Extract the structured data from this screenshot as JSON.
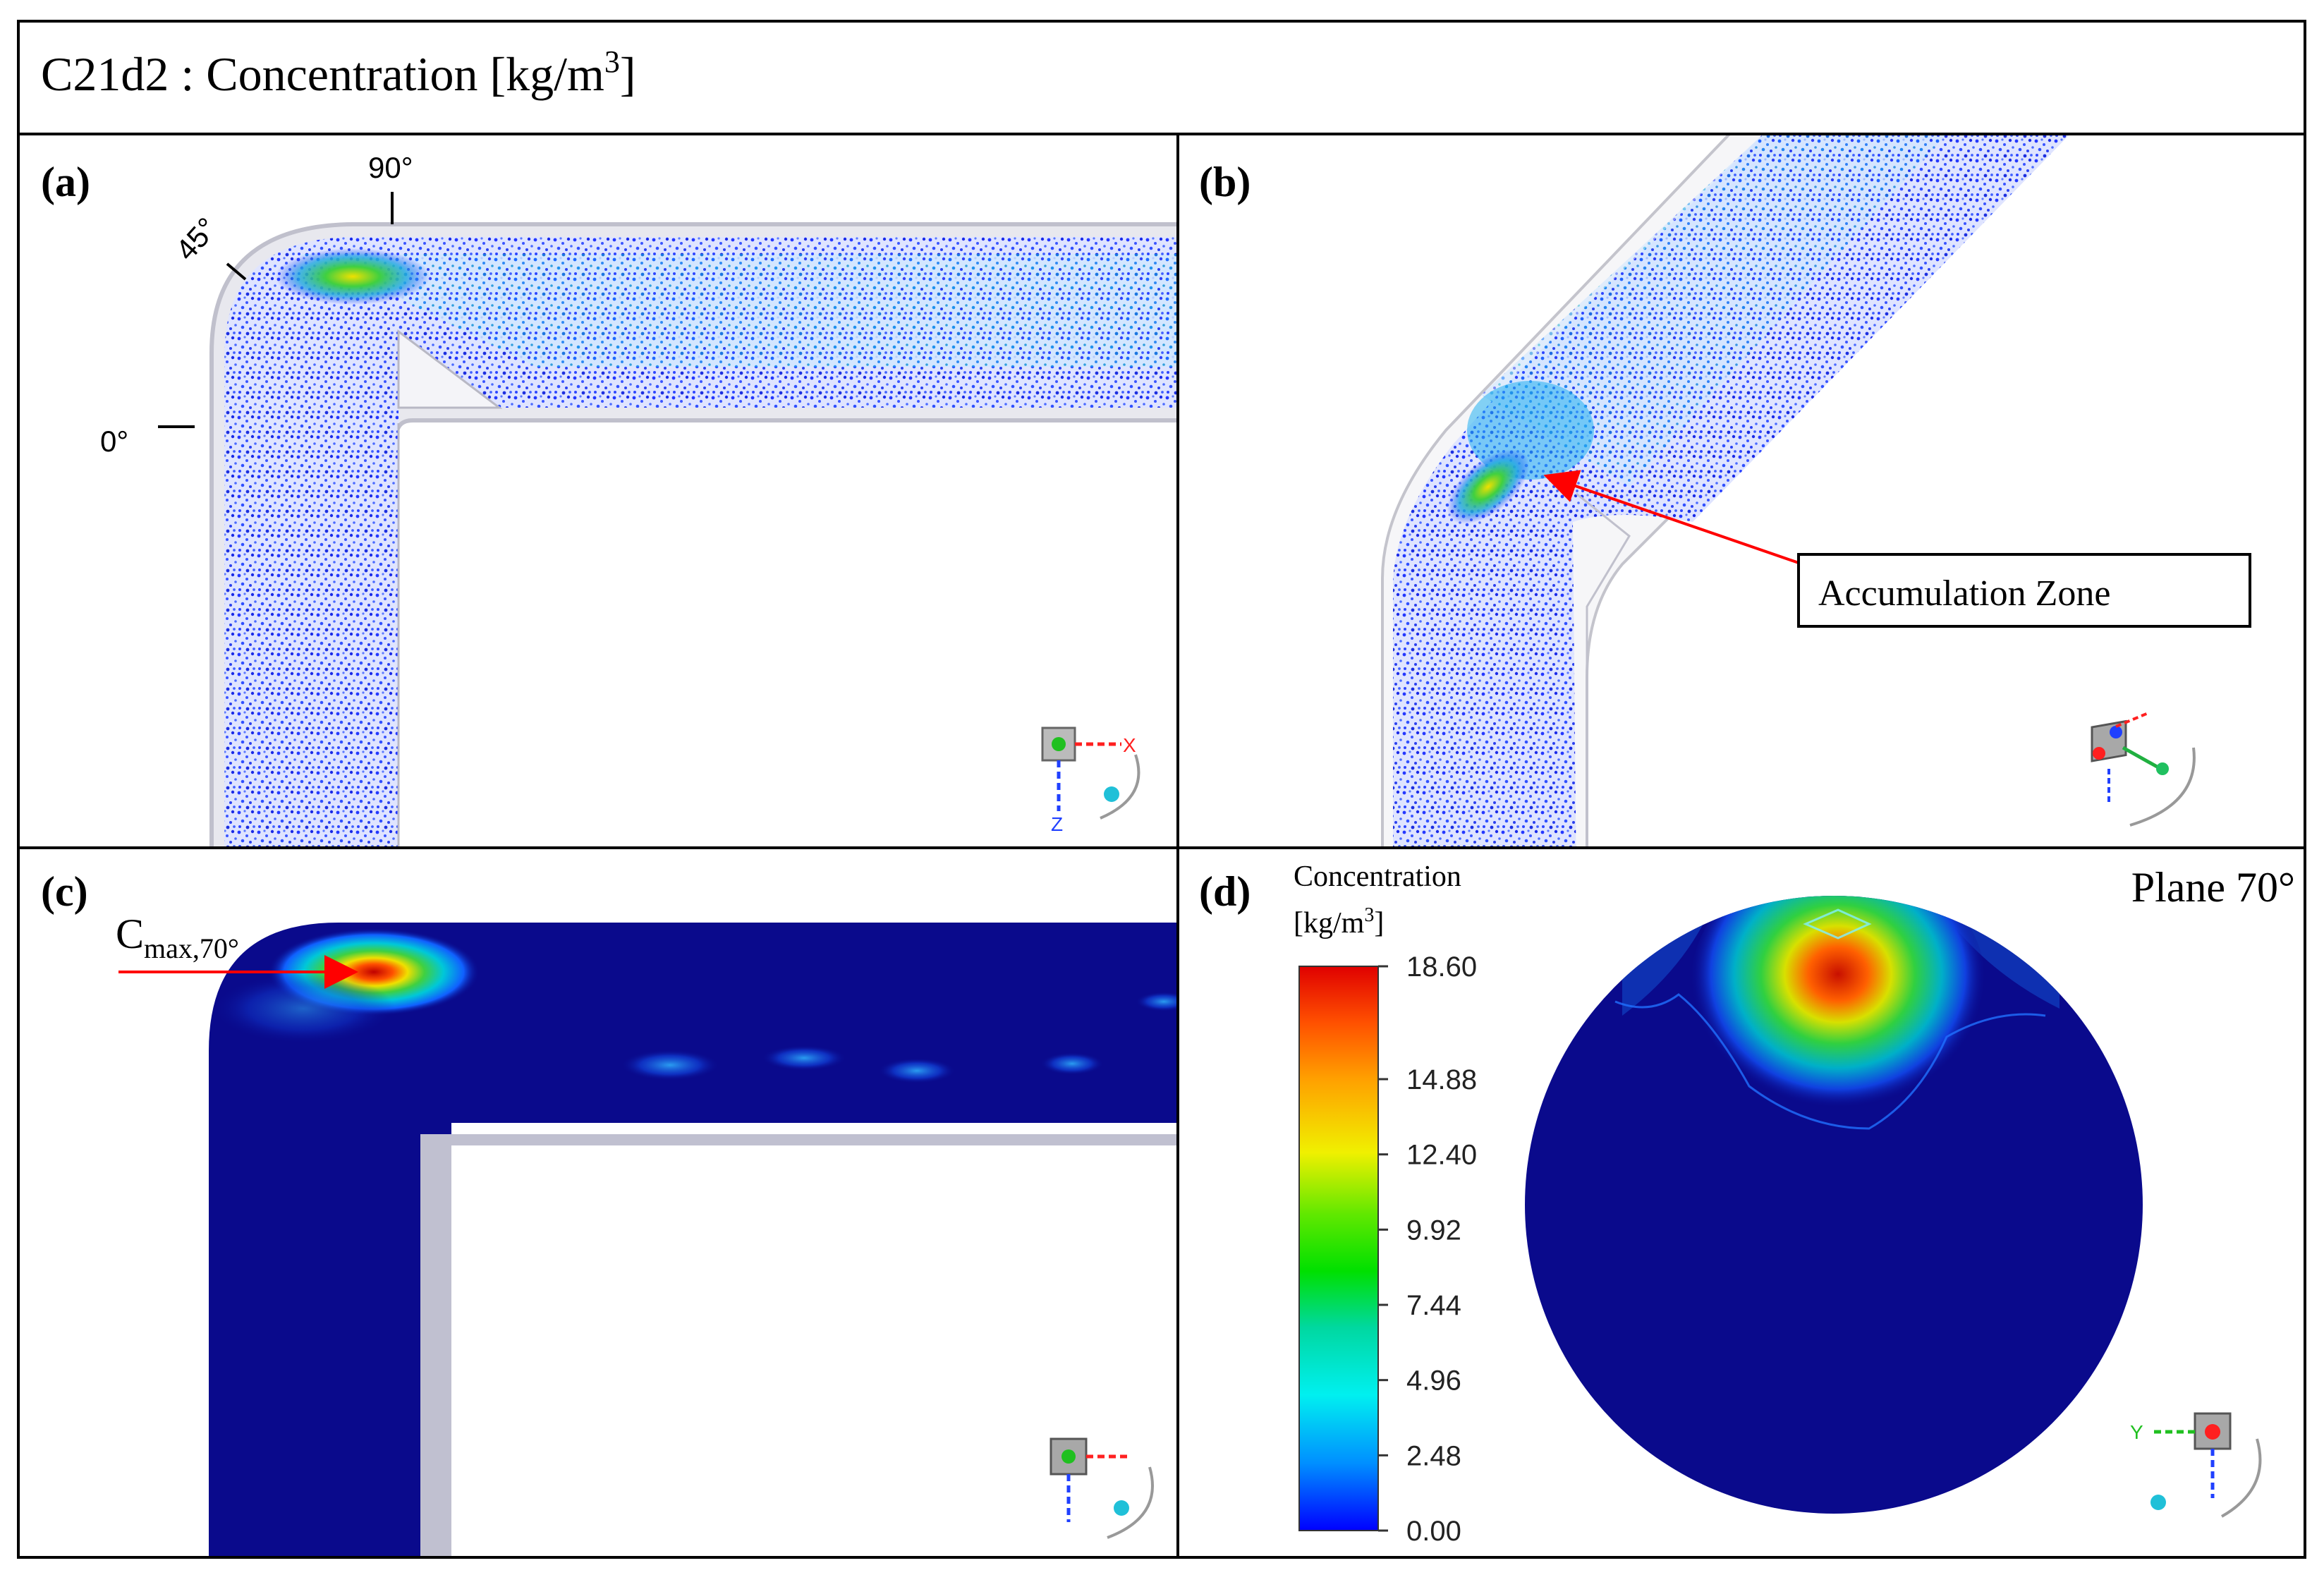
{
  "header": {
    "title_prefix": "C21d2 : Concentration  [kg/m",
    "title_superscript": "3",
    "title_suffix": "]"
  },
  "panels": {
    "a": {
      "label": "(a)",
      "angle_labels": [
        "0°",
        "45°",
        "90°"
      ]
    },
    "b": {
      "label": "(b)",
      "callout": "Accumulation Zone"
    },
    "c": {
      "label": "(c)",
      "cmax_main": "C",
      "cmax_sub": "max,70°"
    },
    "d": {
      "label": "(d)",
      "plane_label": "Plane 70°",
      "legend_title_line1": "Concentration",
      "legend_unit_prefix": "[kg/m",
      "legend_unit_sup": "3",
      "legend_unit_suffix": "]"
    }
  },
  "axes_triad": {
    "x_label": "X",
    "y_label": "Y",
    "z_label": "Z"
  },
  "colors": {
    "border": "#000000",
    "pipe_blue": "#0a0a8c",
    "particle_blue": "#2a3cff",
    "accent_red": "#ff0000",
    "wall_gray": "#c8c8d4"
  },
  "chart_data": {
    "type": "heatmap",
    "colorbar": {
      "min": 0.0,
      "max": 18.6,
      "ticks": [
        "18.60",
        "14.88",
        "12.40",
        "9.92",
        "7.44",
        "4.96",
        "2.48",
        "0.00"
      ],
      "colormap": [
        "#0000ff",
        "#0090ff",
        "#00f0f0",
        "#00d8a0",
        "#00e000",
        "#60e800",
        "#f0f000",
        "#ffa000",
        "#ff5000",
        "#e00000"
      ]
    }
  }
}
